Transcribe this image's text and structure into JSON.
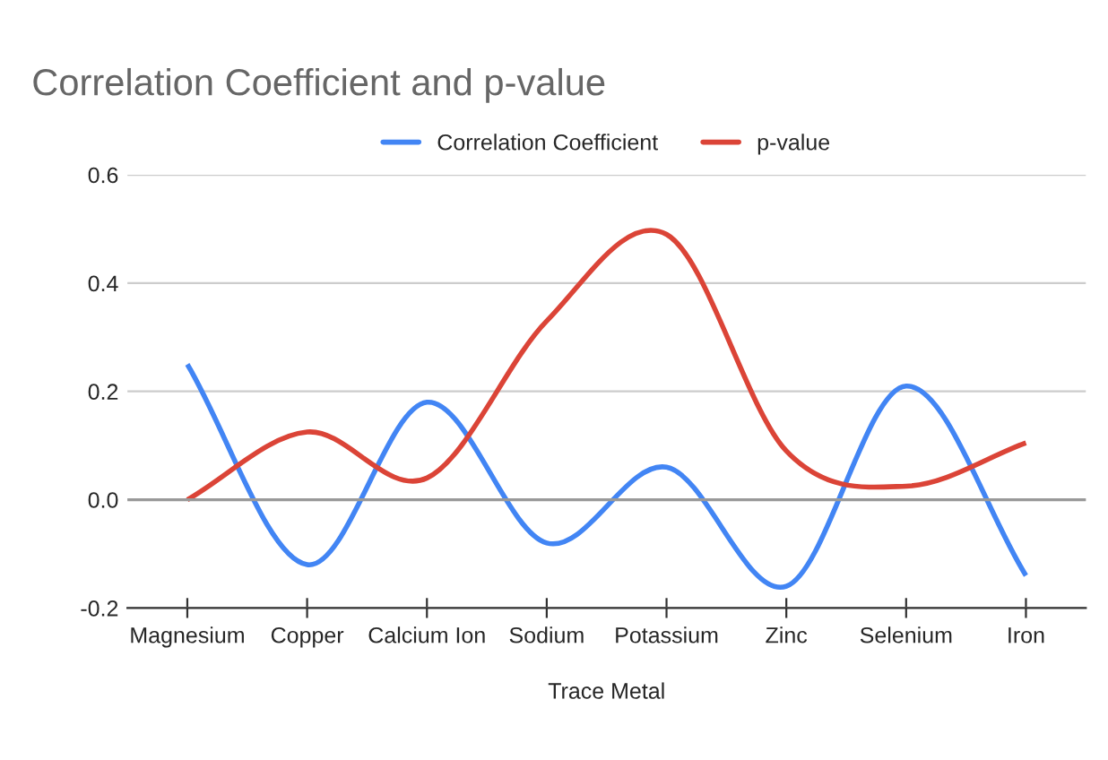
{
  "chart_data": {
    "type": "line",
    "title": "Correlation Coefficient and p-value",
    "xlabel": "Trace Metal",
    "categories": [
      "Magnesium",
      "Copper",
      "Calcium Ion",
      "Sodium",
      "Potassium",
      "Zinc",
      "Selenium",
      "Iron"
    ],
    "series": [
      {
        "name": "Correlation Coefficient",
        "color": "#4285f4",
        "values": [
          0.25,
          -0.12,
          0.18,
          -0.08,
          0.06,
          -0.16,
          0.21,
          -0.14
        ]
      },
      {
        "name": "p-value",
        "color": "#db4437",
        "values": [
          0.0,
          0.125,
          0.04,
          0.33,
          0.49,
          0.09,
          0.025,
          0.105
        ]
      }
    ],
    "ylim": [
      -0.2,
      0.6
    ],
    "yticks": [
      {
        "value": -0.2,
        "label": "-0.2"
      },
      {
        "value": 0.0,
        "label": "0.0"
      },
      {
        "value": 0.2,
        "label": "0.2"
      },
      {
        "value": 0.4,
        "label": "0.4"
      },
      {
        "value": 0.6,
        "label": "0.6"
      }
    ],
    "grid": "y",
    "legend": "top",
    "marker": "none",
    "line_style": "solid"
  }
}
